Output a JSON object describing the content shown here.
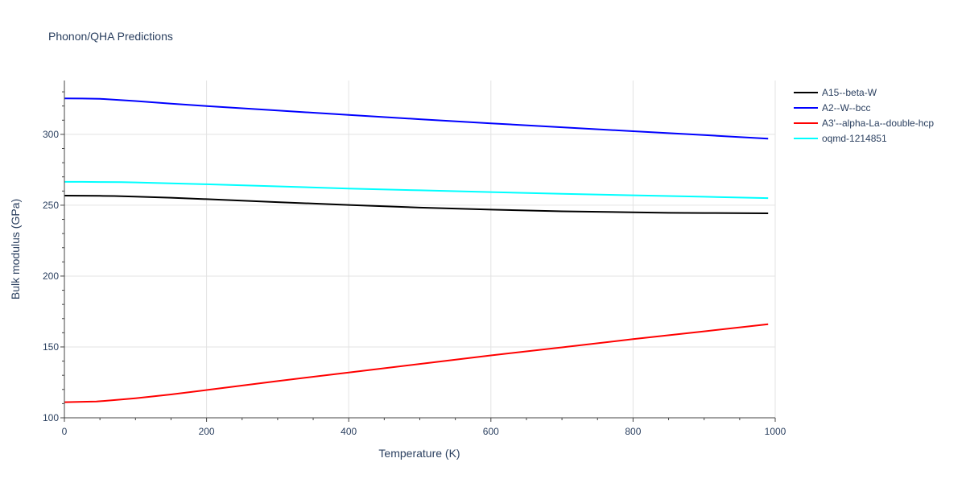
{
  "chart_data": {
    "type": "line",
    "title": "Phonon/QHA Predictions",
    "xlabel": "Temperature (K)",
    "ylabel": "Bulk modulus (GPa)",
    "xlim": [
      0,
      1000
    ],
    "ylim": [
      100,
      338
    ],
    "x_ticks": [
      0,
      200,
      400,
      600,
      800,
      1000
    ],
    "y_ticks": [
      100,
      150,
      200,
      250,
      300
    ],
    "grid": true,
    "legend": "top-right",
    "series": [
      {
        "name": "A15--beta-W",
        "color": "#000000",
        "x": [
          0,
          25,
          50,
          70,
          100,
          150,
          200,
          300,
          400,
          500,
          600,
          700,
          800,
          850,
          900,
          990
        ],
        "y": [
          256.8,
          256.7,
          256.6,
          256.5,
          256.1,
          255.3,
          254.3,
          252.2,
          250.2,
          248.3,
          246.9,
          245.7,
          245.0,
          244.6,
          244.5,
          244.3
        ]
      },
      {
        "name": "A2--W--bcc",
        "color": "#0000ff",
        "x": [
          0,
          25,
          50,
          100,
          150,
          200,
          300,
          400,
          500,
          600,
          700,
          800,
          900,
          990
        ],
        "y": [
          325.4,
          325.3,
          325.1,
          323.5,
          321.7,
          320.0,
          316.8,
          313.7,
          310.7,
          307.8,
          305.0,
          302.2,
          299.5,
          297.0
        ]
      },
      {
        "name": "A3'--alpha-La--double-hcp",
        "color": "#ff0000",
        "x": [
          0,
          25,
          45,
          70,
          100,
          150,
          200,
          300,
          400,
          500,
          600,
          700,
          800,
          900,
          990
        ],
        "y": [
          111.0,
          111.3,
          111.5,
          112.5,
          113.8,
          116.5,
          119.6,
          125.9,
          132.0,
          138.0,
          144.0,
          149.7,
          155.5,
          161.0,
          166.0
        ]
      },
      {
        "name": "oqmd-1214851",
        "color": "#00ffff",
        "x": [
          0,
          25,
          50,
          80,
          100,
          200,
          300,
          400,
          500,
          600,
          700,
          800,
          900,
          990
        ],
        "y": [
          266.5,
          266.5,
          266.4,
          266.3,
          266.1,
          264.8,
          263.3,
          261.8,
          260.5,
          259.3,
          258.1,
          257.0,
          256.0,
          255.0
        ]
      }
    ]
  }
}
